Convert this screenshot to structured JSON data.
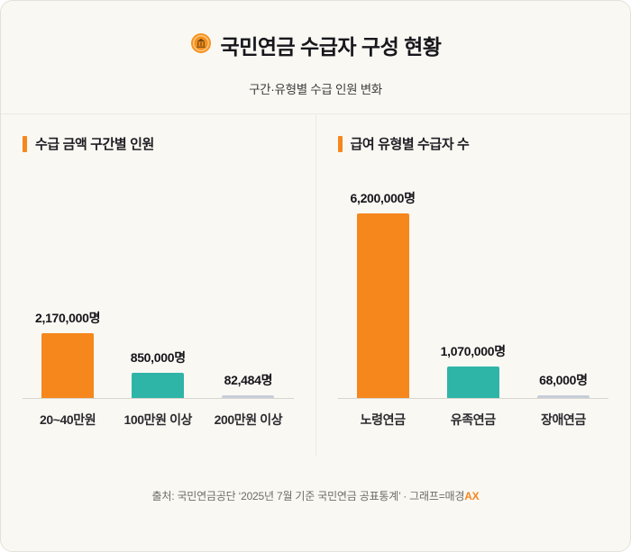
{
  "header": {
    "title": "국민연금 수급자 구성 현황",
    "subtitle": "구간·유형별 수급 인원 변화"
  },
  "colors": {
    "orange": "#F6871D",
    "teal": "#2FB5A8",
    "gray": "#C6CEDA",
    "background": "#FAF8F3"
  },
  "chart_data": [
    {
      "type": "bar",
      "title": "수급 금액 구간별 인원",
      "categories": [
        "20~40만원",
        "100만원 이상",
        "200만원 이상"
      ],
      "values": [
        2170000,
        850000,
        82484
      ],
      "labels": [
        "2,170,000명",
        "850,000명",
        "82,484명"
      ],
      "colors": [
        "#F6871D",
        "#2FB5A8",
        "#C6CEDA"
      ],
      "ylim": [
        0,
        6200000
      ],
      "grid": false,
      "legend": "none"
    },
    {
      "type": "bar",
      "title": "급여 유형별 수급자 수",
      "categories": [
        "노령연금",
        "유족연금",
        "장애연금"
      ],
      "values": [
        6200000,
        1070000,
        68000
      ],
      "labels": [
        "6,200,000명",
        "1,070,000명",
        "68,000명"
      ],
      "colors": [
        "#F6871D",
        "#2FB5A8",
        "#C6CEDA"
      ],
      "ylim": [
        0,
        6200000
      ],
      "grid": false,
      "legend": "none"
    }
  ],
  "footer": {
    "source_prefix": "출처: 국민연금공단 ‘2025년 7월 기준 국민연금 공표통계’ · 그래프=매경",
    "brand_accent": "AX"
  }
}
